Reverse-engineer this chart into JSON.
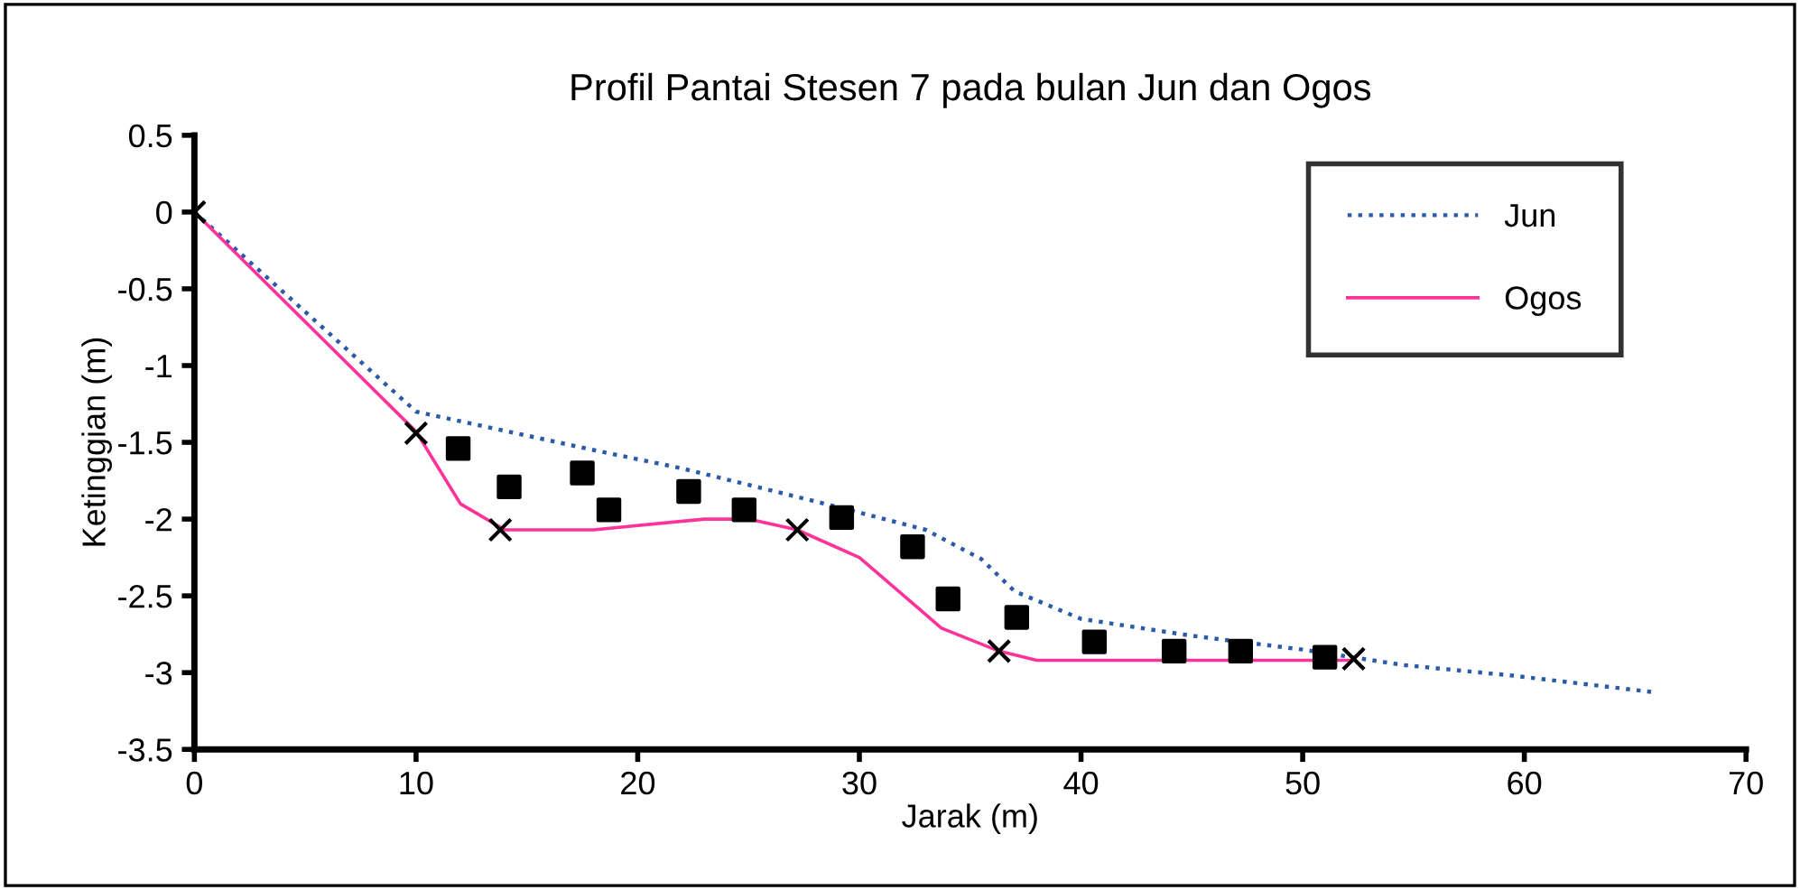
{
  "chart_data": {
    "type": "line",
    "title": "Profil Pantai Stesen 7 pada bulan Jun dan Ogos",
    "xlabel": "Jarak (m)",
    "ylabel": "Ketinggian (m)",
    "xlim": [
      0,
      70
    ],
    "xticks": [
      0,
      10,
      20,
      30,
      40,
      50,
      60,
      70
    ],
    "ylim": [
      -3.5,
      0.5
    ],
    "yticks": [
      0.5,
      0,
      -0.5,
      -1,
      -1.5,
      -2,
      -2.5,
      -3,
      -3.5
    ],
    "grid": false,
    "legend": "top right",
    "series": [
      {
        "name": "Jun",
        "color": "#2a5aa8",
        "line_style": "dotted",
        "marker": "none",
        "x": [
          0,
          5,
          10,
          18,
          22,
          29,
          33,
          35.5,
          37,
          40,
          45,
          50,
          54.5,
          59.5,
          66
        ],
        "values": [
          0,
          -0.65,
          -1.3,
          -1.55,
          -1.67,
          -1.92,
          -2.07,
          -2.26,
          -2.47,
          -2.65,
          -2.76,
          -2.85,
          -2.95,
          -3.02,
          -3.13
        ]
      },
      {
        "name": "Ogos",
        "color": "#ff3399",
        "line_style": "solid",
        "marker": "none",
        "x": [
          0,
          10,
          12,
          14,
          18,
          23,
          25,
          27.2,
          30,
          33.7,
          36.3,
          38,
          52.3
        ],
        "values": [
          0,
          -1.43,
          -1.9,
          -2.07,
          -2.07,
          -2.0,
          -2.0,
          -2.07,
          -2.25,
          -2.71,
          -2.86,
          -2.92,
          -2.92
        ]
      },
      {
        "type": "scatter",
        "color": "#000000",
        "marker": "square",
        "x": [
          11.9,
          14.2,
          17.5,
          18.7,
          22.3,
          24.8,
          29.2,
          32.4,
          34.0,
          37.1,
          40.6,
          44.2,
          47.2,
          51.0
        ],
        "values": [
          -1.54,
          -1.79,
          -1.7,
          -1.94,
          -1.82,
          -1.94,
          -1.99,
          -2.18,
          -2.52,
          -2.64,
          -2.8,
          -2.86,
          -2.86,
          -2.9
        ]
      },
      {
        "type": "scatter",
        "color": "#000000",
        "marker": "cross",
        "x": [
          0,
          10,
          13.8,
          27.2,
          36.3,
          52.3
        ],
        "values": [
          0,
          -1.44,
          -2.07,
          -2.07,
          -2.86,
          -2.91
        ]
      }
    ]
  }
}
